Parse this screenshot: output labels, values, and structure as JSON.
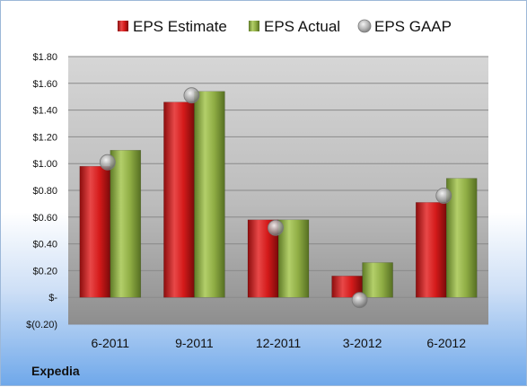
{
  "chart_data": {
    "type": "bar",
    "categories": [
      "6-2011",
      "9-2011",
      "12-2011",
      "3-2012",
      "6-2012"
    ],
    "series": [
      {
        "name": "EPS Estimate",
        "values": [
          0.98,
          1.46,
          0.58,
          0.16,
          0.71
        ],
        "color": "#d41a1a"
      },
      {
        "name": "EPS Actual",
        "values": [
          1.1,
          1.54,
          0.58,
          0.26,
          0.89
        ],
        "color": "#8fad44"
      },
      {
        "name": "EPS GAAP",
        "values": [
          1.01,
          1.51,
          0.52,
          -0.02,
          0.76
        ],
        "color": "#a9a9a9",
        "render": "marker"
      }
    ],
    "ylim": [
      -0.2,
      1.8
    ],
    "yticks": [
      -0.2,
      0.0,
      0.2,
      0.4,
      0.6,
      0.8,
      1.0,
      1.2,
      1.4,
      1.6,
      1.8
    ],
    "ytick_labels": [
      "$(0.20)",
      "$-",
      "$0.20",
      "$0.40",
      "$0.60",
      "$0.80",
      "$1.00",
      "$1.20",
      "$1.40",
      "$1.60",
      "$1.80"
    ],
    "grid": true,
    "legend_position": "top",
    "footer": "Expedia"
  }
}
